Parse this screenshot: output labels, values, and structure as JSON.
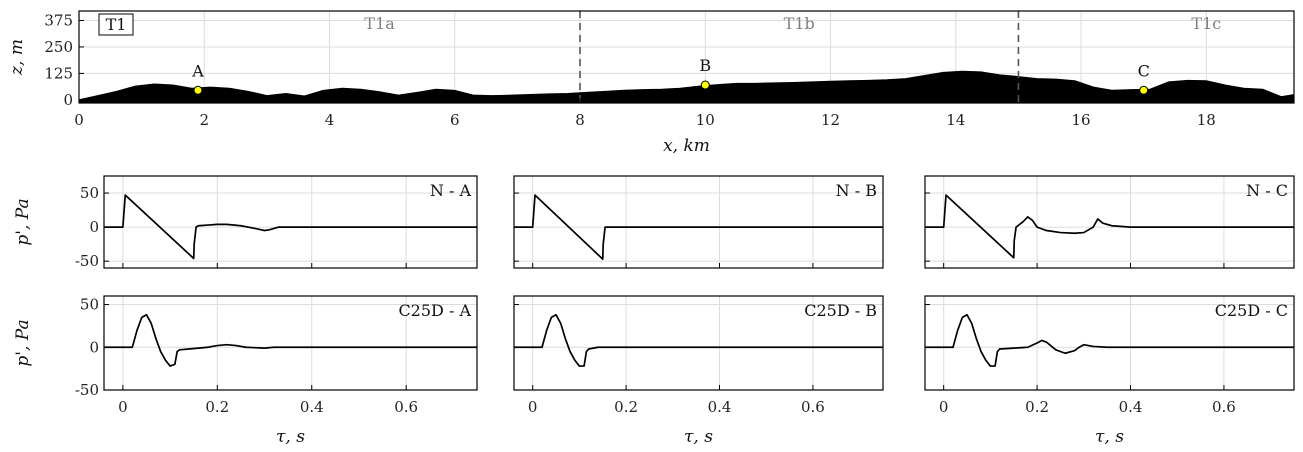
{
  "chart_data": [
    {
      "type": "area",
      "id": "terrain",
      "terrain_tag": "T1",
      "xlabel": "x, km",
      "ylabel": "z, m",
      "xlim": [
        0,
        19.4
      ],
      "ylim": [
        -15,
        420
      ],
      "xticks": [
        0,
        2,
        4,
        6,
        8,
        10,
        12,
        14,
        16,
        18
      ],
      "yticks": [
        0,
        125,
        250,
        375
      ],
      "grid": true,
      "dividers": [
        8,
        15
      ],
      "segments": [
        {
          "label": "T1a",
          "x": 4.8
        },
        {
          "label": "T1b",
          "x": 11.5
        },
        {
          "label": "T1c",
          "x": 18.0
        }
      ],
      "points": [
        {
          "label": "A",
          "x": 1.9,
          "z": 45
        },
        {
          "label": "B",
          "x": 10.0,
          "z": 70
        },
        {
          "label": "C",
          "x": 17.0,
          "z": 45
        }
      ],
      "profile_x": [
        0,
        0.3,
        0.6,
        0.9,
        1.2,
        1.5,
        1.8,
        2.1,
        2.4,
        2.7,
        3.0,
        3.3,
        3.6,
        3.9,
        4.2,
        4.5,
        4.8,
        5.1,
        5.4,
        5.7,
        6.0,
        6.3,
        6.6,
        6.9,
        7.2,
        7.5,
        7.8,
        8.1,
        8.4,
        8.7,
        9.0,
        9.3,
        9.6,
        9.9,
        10.2,
        10.5,
        10.8,
        11.1,
        11.4,
        11.7,
        12.0,
        12.3,
        12.6,
        12.9,
        13.2,
        13.5,
        13.8,
        14.1,
        14.4,
        14.7,
        15.0,
        15.3,
        15.6,
        15.9,
        16.2,
        16.5,
        16.8,
        17.1,
        17.4,
        17.7,
        18.0,
        18.3,
        18.6,
        18.9,
        19.2,
        19.4
      ],
      "profile_z": [
        0,
        20,
        40,
        65,
        75,
        70,
        55,
        60,
        55,
        40,
        20,
        30,
        18,
        45,
        55,
        50,
        38,
        22,
        35,
        50,
        45,
        22,
        20,
        22,
        25,
        28,
        30,
        35,
        40,
        45,
        48,
        50,
        55,
        65,
        72,
        78,
        78,
        80,
        82,
        85,
        88,
        90,
        92,
        95,
        100,
        115,
        130,
        135,
        132,
        118,
        110,
        100,
        98,
        90,
        60,
        45,
        48,
        50,
        85,
        92,
        90,
        70,
        55,
        50,
        15,
        25
      ]
    },
    {
      "type": "line",
      "id": "N-A",
      "panel_label": "N - A",
      "xlabel": "",
      "ylabel": "p', Pa",
      "xlim": [
        -0.04,
        0.75
      ],
      "ylim": [
        -60,
        75
      ],
      "yticks": [
        -50,
        0,
        50
      ],
      "ytick_labels": [
        "-50",
        "0",
        "50"
      ],
      "xticks": [
        0,
        0.2,
        0.4,
        0.6
      ],
      "show_xticklabels": false,
      "grid": true,
      "x": [
        -0.04,
        0.0,
        0.005,
        0.15,
        0.151,
        0.155,
        0.16,
        0.18,
        0.2,
        0.22,
        0.25,
        0.28,
        0.3,
        0.31,
        0.33,
        0.35,
        0.4,
        0.5,
        0.75
      ],
      "y": [
        0,
        0,
        47,
        -46,
        -25,
        0,
        2,
        3,
        4,
        4,
        2,
        -2,
        -5,
        -4,
        0,
        0,
        0,
        0,
        0
      ]
    },
    {
      "type": "line",
      "id": "N-B",
      "panel_label": "N - B",
      "xlabel": "",
      "ylabel": "",
      "xlim": [
        -0.04,
        0.75
      ],
      "ylim": [
        -60,
        75
      ],
      "yticks": [
        -50,
        0,
        50
      ],
      "ytick_labels": [],
      "xticks": [
        0,
        0.2,
        0.4,
        0.6
      ],
      "show_xticklabels": false,
      "grid": true,
      "x": [
        -0.04,
        0.0,
        0.005,
        0.15,
        0.151,
        0.155,
        0.17,
        0.2,
        0.3,
        0.75
      ],
      "y": [
        0,
        0,
        47,
        -47,
        -25,
        0,
        0,
        0,
        0,
        0
      ]
    },
    {
      "type": "line",
      "id": "N-C",
      "panel_label": "N - C",
      "xlabel": "",
      "ylabel": "",
      "xlim": [
        -0.04,
        0.75
      ],
      "ylim": [
        -60,
        75
      ],
      "yticks": [
        -50,
        0,
        50
      ],
      "ytick_labels": [],
      "xticks": [
        0,
        0.2,
        0.4,
        0.6
      ],
      "show_xticklabels": false,
      "grid": true,
      "x": [
        -0.04,
        0.0,
        0.005,
        0.15,
        0.151,
        0.155,
        0.17,
        0.18,
        0.19,
        0.2,
        0.22,
        0.25,
        0.28,
        0.3,
        0.32,
        0.33,
        0.34,
        0.36,
        0.4,
        0.5,
        0.75
      ],
      "y": [
        0,
        0,
        47,
        -45,
        -20,
        0,
        8,
        15,
        10,
        0,
        -5,
        -8,
        -9,
        -8,
        0,
        12,
        6,
        2,
        0,
        0,
        0
      ]
    },
    {
      "type": "line",
      "id": "C25D-A",
      "panel_label": "C25D - A",
      "xlabel": "τ, s",
      "ylabel": "p', Pa",
      "xlim": [
        -0.04,
        0.75
      ],
      "ylim": [
        -50,
        60
      ],
      "yticks": [
        -50,
        0,
        50
      ],
      "ytick_labels": [
        "-50",
        "0",
        "50"
      ],
      "xticks": [
        0,
        0.2,
        0.4,
        0.6
      ],
      "xtick_labels": [
        "0",
        "0.2",
        "0.4",
        "0.6"
      ],
      "show_xticklabels": true,
      "grid": true,
      "x": [
        -0.04,
        0.0,
        0.02,
        0.03,
        0.04,
        0.05,
        0.06,
        0.07,
        0.08,
        0.09,
        0.1,
        0.11,
        0.115,
        0.12,
        0.14,
        0.16,
        0.18,
        0.2,
        0.22,
        0.24,
        0.26,
        0.3,
        0.32,
        0.35,
        0.4,
        0.75
      ],
      "y": [
        0,
        0,
        0,
        20,
        35,
        38,
        28,
        10,
        -5,
        -15,
        -22,
        -20,
        -5,
        -3,
        -2,
        -1,
        0,
        2,
        3,
        2,
        0,
        -1,
        0,
        0,
        0,
        0
      ]
    },
    {
      "type": "line",
      "id": "C25D-B",
      "panel_label": "C25D - B",
      "xlabel": "τ, s",
      "ylabel": "",
      "xlim": [
        -0.04,
        0.75
      ],
      "ylim": [
        -50,
        60
      ],
      "yticks": [
        -50,
        0,
        50
      ],
      "ytick_labels": [],
      "xticks": [
        0,
        0.2,
        0.4,
        0.6
      ],
      "xtick_labels": [
        "0",
        "0.2",
        "0.4",
        "0.6"
      ],
      "show_xticklabels": true,
      "grid": true,
      "x": [
        -0.04,
        0.0,
        0.02,
        0.03,
        0.04,
        0.05,
        0.06,
        0.07,
        0.08,
        0.09,
        0.1,
        0.11,
        0.115,
        0.12,
        0.14,
        0.2,
        0.75
      ],
      "y": [
        0,
        0,
        0,
        20,
        35,
        38,
        28,
        10,
        -5,
        -15,
        -22,
        -22,
        -5,
        -2,
        0,
        0,
        0
      ]
    },
    {
      "type": "line",
      "id": "C25D-C",
      "panel_label": "C25D - C",
      "xlabel": "τ, s",
      "ylabel": "",
      "xlim": [
        -0.04,
        0.75
      ],
      "ylim": [
        -50,
        60
      ],
      "yticks": [
        -50,
        0,
        50
      ],
      "ytick_labels": [],
      "xticks": [
        0,
        0.2,
        0.4,
        0.6
      ],
      "xtick_labels": [
        "0",
        "0.2",
        "0.4",
        "0.6"
      ],
      "show_xticklabels": true,
      "grid": true,
      "x": [
        -0.04,
        0.0,
        0.02,
        0.03,
        0.04,
        0.05,
        0.06,
        0.07,
        0.08,
        0.09,
        0.1,
        0.11,
        0.115,
        0.12,
        0.15,
        0.18,
        0.2,
        0.21,
        0.22,
        0.24,
        0.26,
        0.28,
        0.29,
        0.3,
        0.32,
        0.35,
        0.4,
        0.75
      ],
      "y": [
        0,
        0,
        0,
        20,
        35,
        38,
        28,
        10,
        -5,
        -15,
        -22,
        -22,
        -5,
        -2,
        -1,
        0,
        5,
        8,
        6,
        -3,
        -7,
        -4,
        0,
        3,
        1,
        0,
        0,
        0
      ]
    }
  ]
}
